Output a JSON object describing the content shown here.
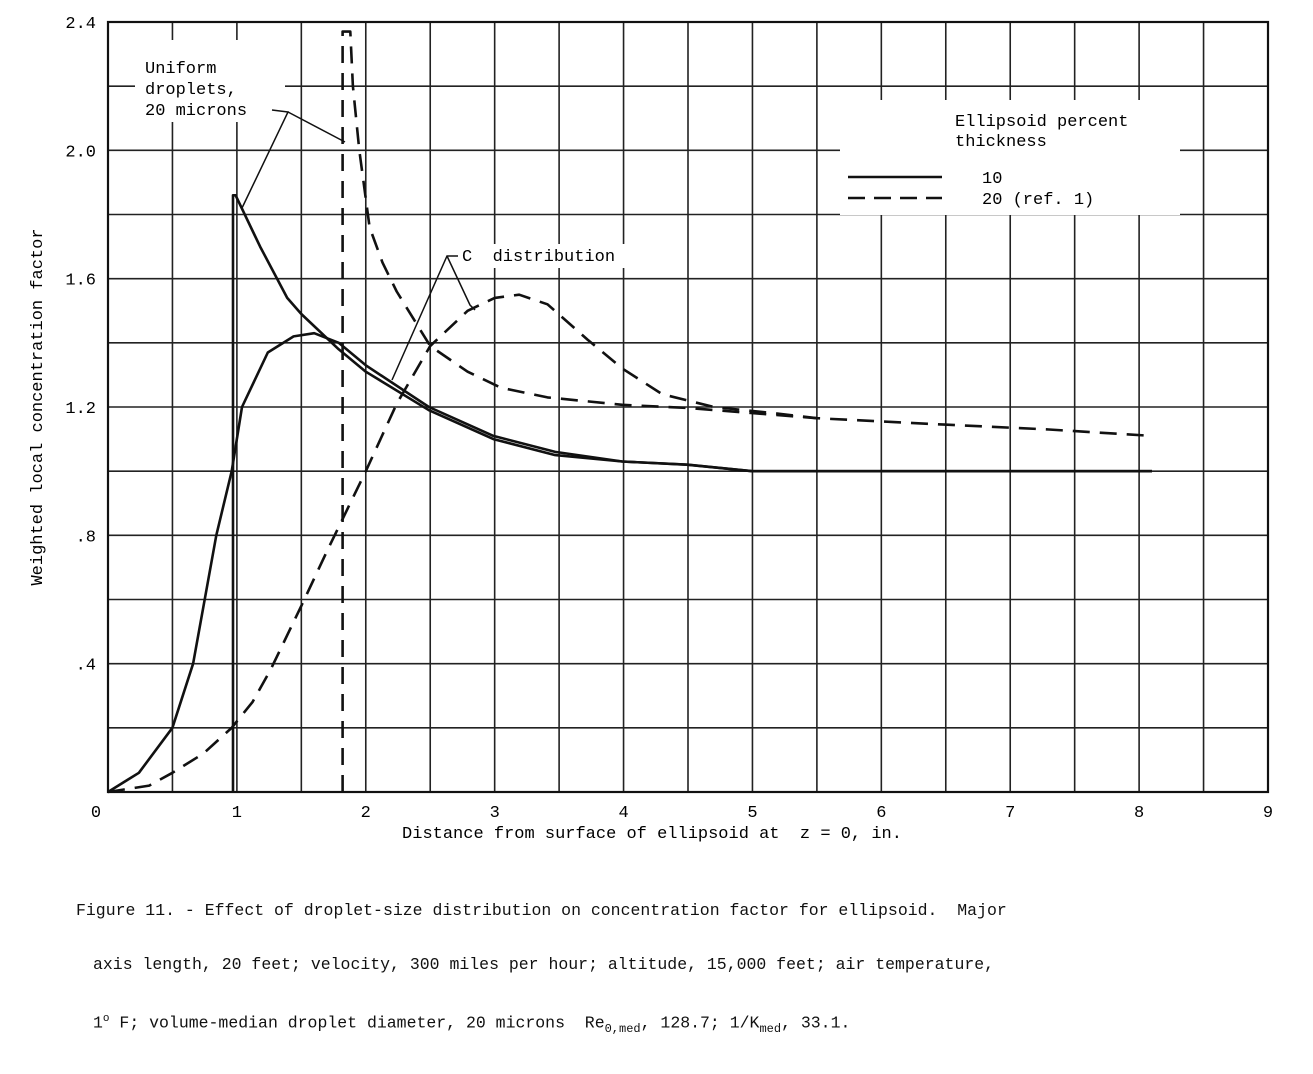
{
  "chart_data": {
    "type": "line",
    "xlabel": "Distance from surface of ellipsoid at  z = 0, in.",
    "ylabel": "Weighted local concentration factor",
    "xlim": [
      0,
      9
    ],
    "ylim": [
      0,
      2.4
    ],
    "x_ticks": [
      "0",
      "1",
      "2",
      "3",
      "4",
      "5",
      "6",
      "7",
      "8",
      "9"
    ],
    "y_ticks": [
      ".4",
      ".8",
      "1.2",
      "1.6",
      "2.0",
      "2.4"
    ],
    "y_tick_values": [
      0.4,
      0.8,
      1.2,
      1.6,
      2.0,
      2.4
    ],
    "grid": true,
    "grid_x_step": 0.5,
    "grid_y_step": 0.2,
    "legend": {
      "title": [
        "Ellipsoid percent",
        "thickness"
      ],
      "placement": "top-right",
      "entries": [
        {
          "label": "10",
          "style": "solid"
        },
        {
          "label": "20 (ref. 1)",
          "style": "dashed"
        }
      ]
    },
    "annotations": {
      "uniform": [
        "Uniform",
        "droplets,",
        "20 microns"
      ],
      "c_dist": "C  distribution"
    },
    "series": [
      {
        "thickness": "10",
        "case": "uniform",
        "style": "solid",
        "points": [
          [
            0.97,
            0
          ],
          [
            0.97,
            1.86
          ],
          [
            0.99,
            1.86
          ],
          [
            1.18,
            1.7
          ],
          [
            1.39,
            1.54
          ],
          [
            1.5,
            1.49
          ],
          [
            1.79,
            1.38
          ],
          [
            2.0,
            1.31
          ],
          [
            2.49,
            1.19
          ],
          [
            2.99,
            1.1
          ],
          [
            3.47,
            1.05
          ],
          [
            3.99,
            1.03
          ],
          [
            4.5,
            1.02
          ],
          [
            5,
            1.0
          ],
          [
            6,
            1.0
          ],
          [
            7,
            1.0
          ],
          [
            8.1,
            1.0
          ]
        ]
      },
      {
        "thickness": "10",
        "case": "C distribution",
        "style": "solid",
        "points": [
          [
            0,
            0
          ],
          [
            0.24,
            0.06
          ],
          [
            0.5,
            0.2
          ],
          [
            0.66,
            0.4
          ],
          [
            0.84,
            0.8
          ],
          [
            0.96,
            1.0
          ],
          [
            1.04,
            1.2
          ],
          [
            1.24,
            1.37
          ],
          [
            1.44,
            1.42
          ],
          [
            1.6,
            1.43
          ],
          [
            1.79,
            1.4
          ],
          [
            2.0,
            1.33
          ],
          [
            2.49,
            1.2
          ],
          [
            2.99,
            1.11
          ],
          [
            3.47,
            1.06
          ],
          [
            3.99,
            1.03
          ],
          [
            4.49,
            1.02
          ],
          [
            5,
            1.0
          ],
          [
            6,
            1.0
          ],
          [
            7,
            1.0
          ],
          [
            8.1,
            1.0
          ]
        ]
      },
      {
        "thickness": "20",
        "case": "uniform",
        "style": "dashed",
        "points": [
          [
            1.82,
            0
          ],
          [
            1.82,
            2.37
          ],
          [
            1.88,
            2.37
          ],
          [
            1.9,
            2.2
          ],
          [
            1.95,
            2.0
          ],
          [
            2.03,
            1.76
          ],
          [
            2.13,
            1.65
          ],
          [
            2.24,
            1.56
          ],
          [
            2.5,
            1.39
          ],
          [
            2.79,
            1.31
          ],
          [
            3.05,
            1.26
          ],
          [
            3.41,
            1.23
          ],
          [
            3.99,
            1.207
          ],
          [
            4.5,
            1.197
          ],
          [
            5.5,
            1.165
          ],
          [
            6.49,
            1.145
          ],
          [
            7.3,
            1.13
          ],
          [
            8.1,
            1.11
          ]
        ]
      },
      {
        "thickness": "20",
        "case": "C distribution",
        "style": "dashed",
        "points": [
          [
            0,
            0
          ],
          [
            0.32,
            0.02
          ],
          [
            0.5,
            0.06
          ],
          [
            0.74,
            0.12
          ],
          [
            0.96,
            0.2
          ],
          [
            1.12,
            0.28
          ],
          [
            1.26,
            0.38
          ],
          [
            1.5,
            0.58
          ],
          [
            1.71,
            0.76
          ],
          [
            2.0,
            1.0
          ],
          [
            2.24,
            1.21
          ],
          [
            2.5,
            1.39
          ],
          [
            2.79,
            1.5
          ],
          [
            3.0,
            1.54
          ],
          [
            3.19,
            1.55
          ],
          [
            3.41,
            1.52
          ],
          [
            3.72,
            1.41
          ],
          [
            3.99,
            1.32
          ],
          [
            4.3,
            1.24
          ],
          [
            4.7,
            1.2
          ],
          [
            5.18,
            1.18
          ],
          [
            5.5,
            1.165
          ]
        ]
      }
    ]
  },
  "caption": {
    "line1": "Figure 11. - Effect of droplet-size distribution on concentration factor for ellipsoid.  Major",
    "line2": "axis length, 20 feet; velocity, 300 miles per hour; altitude, 15,000 feet; air temperature,",
    "line3_a": "1",
    "line3_sup": "o",
    "line3_b": " F; volume-median droplet diameter, 20 microns  Re",
    "line3_sub1": "0,med",
    "line3_c": ", 128.7; 1/K",
    "line3_sub2": "med",
    "line3_d": ", 33.1."
  }
}
